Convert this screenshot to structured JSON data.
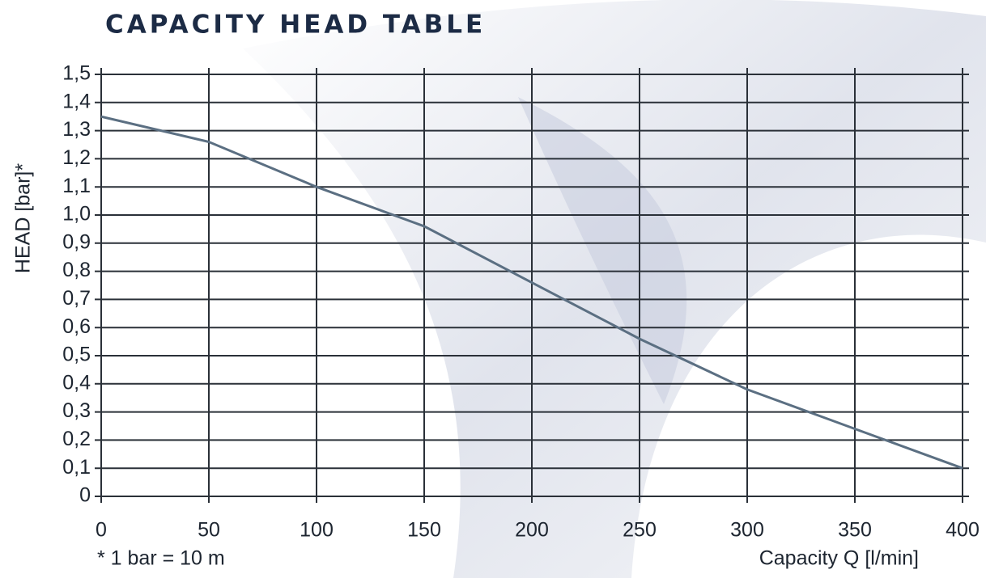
{
  "chart_data": {
    "type": "line",
    "title": "CAPACITY HEAD TABLE",
    "x_label": "Capacity Q [l/min]",
    "y_label": "HEAD [bar]*",
    "note": "* 1 bar = 10 m",
    "x": [
      0,
      50,
      100,
      150,
      200,
      250,
      300,
      350,
      400
    ],
    "series": [
      {
        "color": "#5b6f82",
        "values": [
          1.35,
          1.26,
          1.1,
          0.96,
          0.76,
          0.56,
          0.38,
          0.24,
          0.1
        ]
      }
    ],
    "xlim": [
      0,
      400
    ],
    "xticks": [
      0,
      50,
      100,
      150,
      200,
      250,
      300,
      350,
      400
    ],
    "ylim": [
      0,
      1.5
    ],
    "yticks": [
      0,
      {
        "value": 0.1,
        "label": "0,1"
      },
      {
        "value": 0.2,
        "label": "0,2"
      },
      {
        "value": 0.3,
        "label": "0,3"
      },
      {
        "value": 0.4,
        "label": "0,4"
      },
      {
        "value": 0.5,
        "label": "0,5"
      },
      {
        "value": 0.6,
        "label": "0,6"
      },
      {
        "value": 0.7,
        "label": "0,7"
      },
      {
        "value": 0.8,
        "label": "0,8"
      },
      {
        "value": 0.9,
        "label": "0,9"
      },
      {
        "value": 1.0,
        "label": "1,0"
      },
      {
        "value": 1.1,
        "label": "1,1"
      },
      {
        "value": 1.2,
        "label": "1,2"
      },
      {
        "value": 1.3,
        "label": "1,3"
      },
      {
        "value": 1.4,
        "label": "1,4"
      },
      {
        "value": 1.5,
        "label": "1,5"
      }
    ],
    "grid": true
  }
}
